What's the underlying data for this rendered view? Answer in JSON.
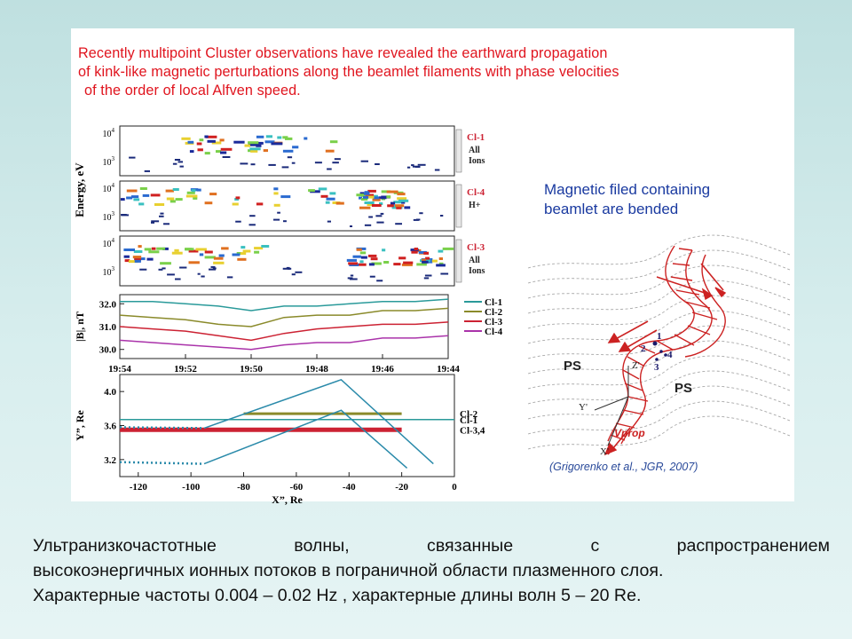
{
  "headline": {
    "lines": [
      "Recently multipoint Cluster observations have revealed the earthward propagation",
      "of kink-like magnetic perturbations along the beamlet filaments with phase velocities",
      "of the order of local Alfven speed."
    ]
  },
  "right_caption": {
    "lines": [
      "Magnetic filed containing",
      "beamlet are bended"
    ]
  },
  "credit": "(Grigorenko et al., JGR, 2007)",
  "diagram": {
    "labels": {
      "ps_left": "PS",
      "ps_right": "PS",
      "z": "Z'",
      "y": "Y'",
      "x": "X'",
      "vprop": "Vprop",
      "sc1": "1",
      "sc2": "2",
      "sc3": "3",
      "sc4": "4"
    }
  },
  "spectrograms": {
    "ylabel": "Energy, eV",
    "tick_hi": "10",
    "tick_hi_exp": "4",
    "tick_lo": "10",
    "tick_lo_exp": "3",
    "panels": [
      {
        "spacecraft": "Cl-1",
        "species": [
          "All",
          "Ions"
        ]
      },
      {
        "spacecraft": "Cl-4",
        "species": [
          "H+"
        ]
      },
      {
        "spacecraft": "Cl-3",
        "species": [
          "All",
          "Ions"
        ]
      }
    ]
  },
  "colors": {
    "cl1": "#2a9a9a",
    "cl2": "#8a8a2a",
    "cl3": "#cc2233",
    "cl4": "#aa33aa",
    "headline": "#e0141e",
    "caption": "#1a3aa0",
    "field_lines": "#cc2222"
  },
  "chart_data": [
    {
      "type": "line",
      "title": "",
      "ylabel": "|B|, nT",
      "x_tick_labels": [
        "19:54",
        "19:52",
        "19:50",
        "19:48",
        "19:46",
        "19:44"
      ],
      "y_ticks": [
        30.0,
        31.0,
        32.0
      ],
      "y_tick_labels": [
        "30.0",
        "31.0",
        "32.0"
      ],
      "ylim": [
        29.6,
        32.4
      ],
      "legend_position": "right",
      "x_index": [
        0,
        1,
        2,
        3,
        4,
        5,
        6,
        7,
        8,
        9,
        10
      ],
      "series": [
        {
          "name": "Cl-1",
          "color": "#2a9a9a",
          "values": [
            32.1,
            32.1,
            32.0,
            31.9,
            31.7,
            31.9,
            31.9,
            32.0,
            32.1,
            32.1,
            32.2
          ]
        },
        {
          "name": "Cl-2",
          "color": "#8a8a2a",
          "values": [
            31.5,
            31.4,
            31.3,
            31.1,
            31.0,
            31.4,
            31.5,
            31.5,
            31.7,
            31.7,
            31.8
          ]
        },
        {
          "name": "Cl-3",
          "color": "#cc2233",
          "values": [
            31.0,
            30.9,
            30.8,
            30.6,
            30.4,
            30.7,
            30.9,
            31.0,
            31.1,
            31.1,
            31.2
          ]
        },
        {
          "name": "Cl-4",
          "color": "#aa33aa",
          "values": [
            30.4,
            30.3,
            30.2,
            30.1,
            30.0,
            30.2,
            30.3,
            30.3,
            30.5,
            30.5,
            30.6
          ]
        }
      ]
    },
    {
      "type": "line",
      "title": "",
      "xlabel": "X”, Re",
      "ylabel": "Y”, Re",
      "xlim": [
        -127,
        0
      ],
      "ylim": [
        3.0,
        4.2
      ],
      "x_ticks": [
        -120,
        -100,
        -80,
        -60,
        -40,
        -20,
        0
      ],
      "x_tick_labels": [
        "-120",
        "-100",
        "-80",
        "-60",
        "-40",
        "-20",
        "0"
      ],
      "y_ticks": [
        3.2,
        3.6,
        4.0
      ],
      "y_tick_labels": [
        "3.2",
        "3.6",
        "4.0"
      ],
      "legend_position": "right",
      "series": [
        {
          "name": "Cl-2",
          "color": "#8a8a2a",
          "x": [
            -80,
            -20
          ],
          "y": [
            3.74,
            3.74
          ]
        },
        {
          "name": "Cl-1",
          "color": "#2a9a9a",
          "x": [
            -127,
            0
          ],
          "y": [
            3.67,
            3.67
          ]
        },
        {
          "name": "Cl-3,4",
          "color": "#cc2233",
          "x": [
            -127,
            -95,
            -35,
            -20
          ],
          "y": [
            3.55,
            3.55,
            3.55,
            3.55
          ]
        },
        {
          "name": "",
          "color": "#2a8aaa",
          "x": [
            -95,
            -43,
            -8
          ],
          "y": [
            3.57,
            4.14,
            3.15
          ]
        },
        {
          "name": "",
          "color": "#2a8aaa",
          "x": [
            -95,
            -43,
            -18
          ],
          "y": [
            3.15,
            3.78,
            3.1
          ]
        }
      ]
    }
  ],
  "russian_text": {
    "line1": "Ультранизкочастотные волны, связанные с распространением",
    "line2": "высокоэнергичных ионных потоков в пограничной области плазменного слоя.",
    "line3": "Характерные частоты 0.004 – 0.02 Hz , характерные длины волн 5 – 20 Re."
  }
}
